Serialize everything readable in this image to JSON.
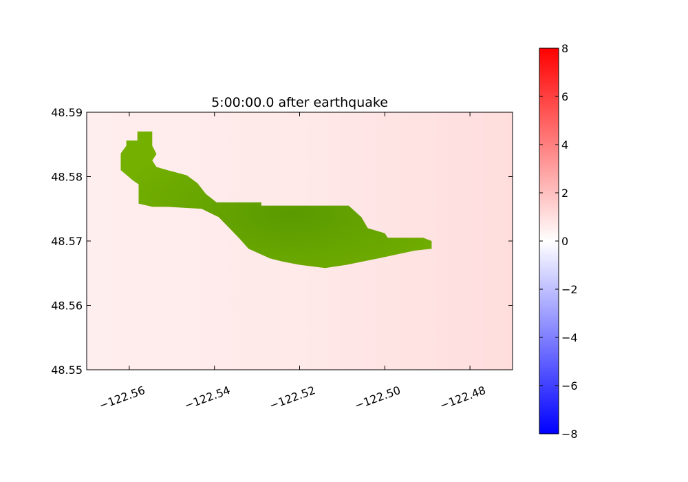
{
  "chart_data": {
    "type": "heatmap",
    "title": "5:00:00.0 after earthquake",
    "xlim": [
      -122.57,
      -122.47
    ],
    "ylim": [
      48.55,
      48.59
    ],
    "x_ticks": [
      -122.56,
      -122.54,
      -122.52,
      -122.5,
      -122.48
    ],
    "x_tick_labels": [
      "−122.56",
      "−122.54",
      "−122.52",
      "−122.50",
      "−122.48"
    ],
    "y_ticks": [
      48.55,
      48.56,
      48.57,
      48.58,
      48.59
    ],
    "y_tick_labels": [
      "48.55",
      "48.56",
      "48.57",
      "48.58",
      "48.59"
    ],
    "x_tick_rotation_deg": 20,
    "colorbar": {
      "min": -8,
      "max": 8,
      "colormap": "bwr",
      "ticks": [
        8,
        6,
        4,
        2,
        0,
        -2,
        -4,
        -6,
        -8
      ],
      "tick_labels": [
        "8",
        "6",
        "4",
        "2",
        "0",
        "−2",
        "−4",
        "−6",
        "−8"
      ]
    },
    "field": {
      "background_value_approx": 0.5,
      "background_color": "#ffeeee",
      "east_background_color": "#ffdddd"
    },
    "land_mask": {
      "color": "#6aa800",
      "dark_color": "#5a9a00",
      "outline_lonlat": [
        [
          -122.5607,
          48.5856
        ],
        [
          -122.5581,
          48.5856
        ],
        [
          -122.5581,
          48.587
        ],
        [
          -122.5546,
          48.587
        ],
        [
          -122.5546,
          48.5848
        ],
        [
          -122.5536,
          48.5835
        ],
        [
          -122.5546,
          48.5825
        ],
        [
          -122.5536,
          48.5815
        ],
        [
          -122.551,
          48.581
        ],
        [
          -122.5465,
          48.5802
        ],
        [
          -122.544,
          48.579
        ],
        [
          -122.542,
          48.5773
        ],
        [
          -122.5395,
          48.576
        ],
        [
          -122.529,
          48.576
        ],
        [
          -122.529,
          48.5755
        ],
        [
          -122.5085,
          48.5755
        ],
        [
          -122.5055,
          48.5737
        ],
        [
          -122.504,
          48.572
        ],
        [
          -122.5,
          48.5712
        ],
        [
          -122.4993,
          48.5705
        ],
        [
          -122.491,
          48.5705
        ],
        [
          -122.489,
          48.57
        ],
        [
          -122.489,
          48.5688
        ],
        [
          -122.493,
          48.5685
        ],
        [
          -122.498,
          48.5678
        ],
        [
          -122.5015,
          48.5673
        ],
        [
          -122.509,
          48.5663
        ],
        [
          -122.514,
          48.5658
        ],
        [
          -122.52,
          48.5663
        ],
        [
          -122.524,
          48.5668
        ],
        [
          -122.527,
          48.5673
        ],
        [
          -122.532,
          48.5688
        ],
        [
          -122.534,
          48.5703
        ],
        [
          -122.5365,
          48.572
        ],
        [
          -122.539,
          48.5737
        ],
        [
          -122.543,
          48.575
        ],
        [
          -122.551,
          48.5753
        ],
        [
          -122.5545,
          48.5753
        ],
        [
          -122.5578,
          48.5758
        ],
        [
          -122.5578,
          48.5788
        ],
        [
          -122.5593,
          48.5795
        ],
        [
          -122.562,
          48.581
        ],
        [
          -122.562,
          48.5836
        ],
        [
          -122.5607,
          48.5848
        ]
      ]
    }
  }
}
